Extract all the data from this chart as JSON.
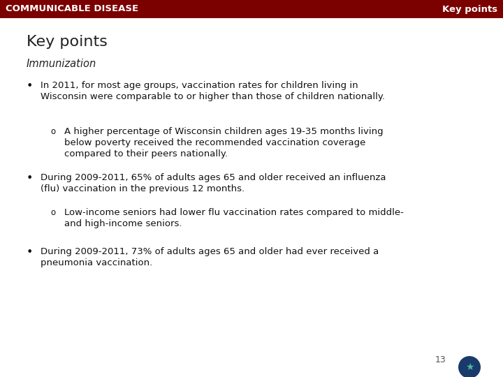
{
  "header_bg_color": "#7B0000",
  "header_text_left": "COMMUNICABLE DISEASE",
  "header_text_right": "Key points",
  "header_text_color": "#FFFFFF",
  "header_font_size": 9.5,
  "background_color": "#FFFFFF",
  "title": "Key points",
  "title_font_size": 16,
  "title_color": "#222222",
  "section_label": "Immunization",
  "section_label_font_size": 10.5,
  "section_label_color": "#222222",
  "bullets": [
    {
      "level": 1,
      "text": "In 2011, for most age groups, vaccination rates for children living in\nWisconsin were comparable to or higher than those of children nationally."
    },
    {
      "level": 2,
      "text": "A higher percentage of Wisconsin children ages 19-35 months living\nbelow poverty received the recommended vaccination coverage\ncompared to their peers nationally."
    },
    {
      "level": 1,
      "text": "During 2009-2011, 65% of adults ages 65 and older received an influenza\n(flu) vaccination in the previous 12 months."
    },
    {
      "level": 2,
      "text": "Low-income seniors had lower flu vaccination rates compared to middle-\nand high-income seniors."
    },
    {
      "level": 1,
      "text": "During 2009-2011, 73% of adults ages 65 and older had ever received a\npneumonia vaccination."
    }
  ],
  "bullet_font_size": 9.5,
  "bullet_color": "#111111",
  "page_number": "13",
  "page_num_color": "#555555",
  "page_num_font_size": 9,
  "icon_color": "#1a3a6b",
  "icon_star_color": "#4db8a0"
}
